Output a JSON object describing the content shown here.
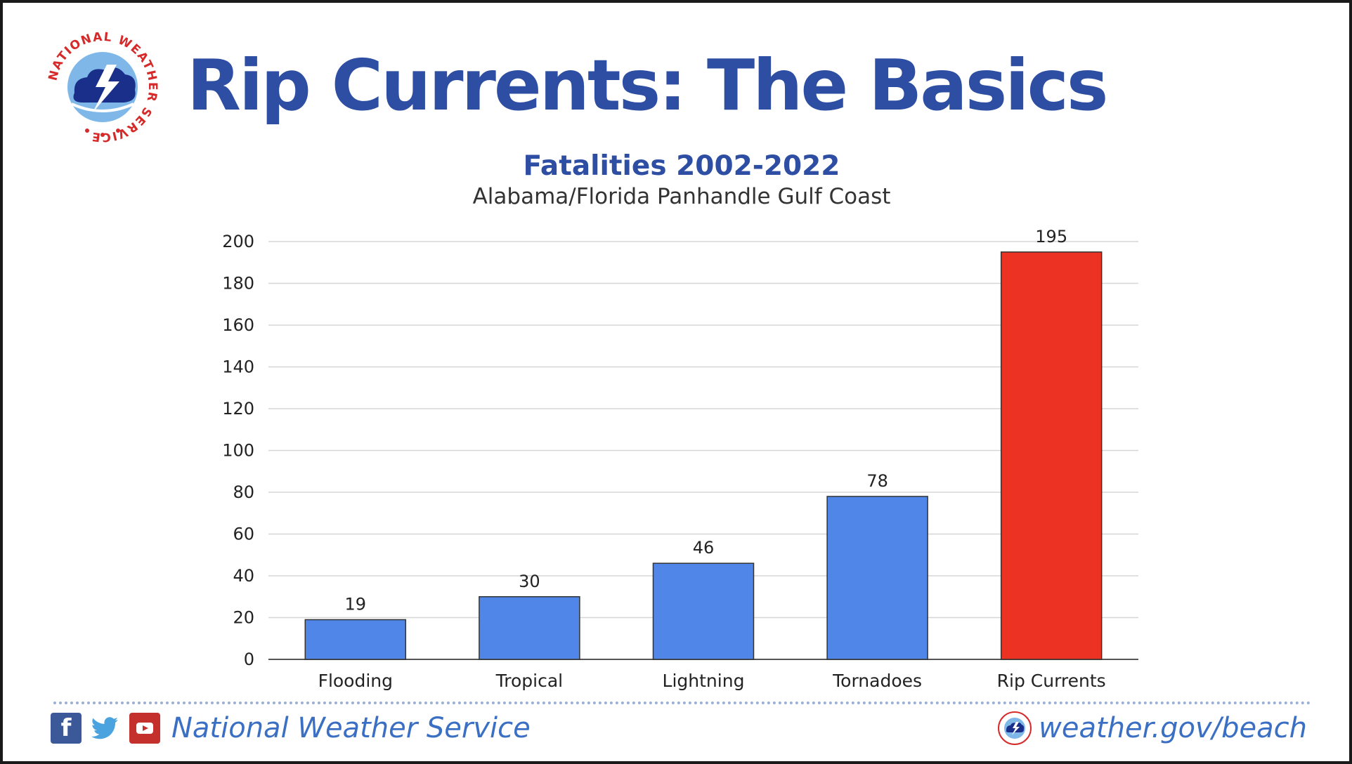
{
  "header": {
    "title": "Rip Currents: The Basics",
    "logo_text_top": "NATIONAL WEATHER SERVICE"
  },
  "chart_data": {
    "type": "bar",
    "title": "Fatalities 2002-2022",
    "subtitle": "Alabama/Florida Panhandle Gulf Coast",
    "categories": [
      "Flooding",
      "Tropical",
      "Lightning",
      "Tornadoes",
      "Rip Currents"
    ],
    "values": [
      19,
      30,
      46,
      78,
      195
    ],
    "bar_colors": [
      "#4f86e8",
      "#4f86e8",
      "#4f86e8",
      "#4f86e8",
      "#ec3223"
    ],
    "ylim": [
      0,
      200
    ],
    "yticks": [
      0,
      20,
      40,
      60,
      80,
      100,
      120,
      140,
      160,
      180,
      200
    ],
    "grid": true,
    "data_labels": true,
    "xlabel": "",
    "ylabel": ""
  },
  "footer": {
    "left_text": "National Weather Service",
    "right_text": "weather.gov/beach",
    "icons": [
      "facebook-icon",
      "twitter-icon",
      "youtube-icon",
      "nws-logo-icon"
    ]
  },
  "colors": {
    "brand_blue": "#2d4ea2",
    "link_blue": "#3b6fc4",
    "bar_blue": "#4f86e8",
    "bar_red": "#ec3223",
    "nws_red": "#d62a2a"
  }
}
